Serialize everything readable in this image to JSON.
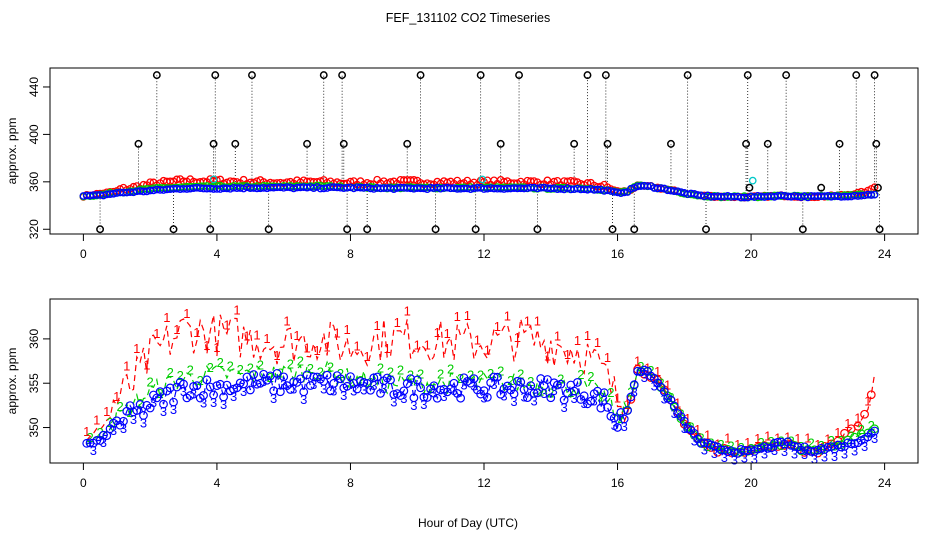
{
  "chart_data": [
    {
      "type": "scatter",
      "title": "FEF_131102  CO2 Timeseries",
      "xlabel": "",
      "ylabel": "approx. ppm",
      "xlim": [
        -1,
        25
      ],
      "ylim": [
        316,
        456
      ],
      "x_ticks": [
        0,
        4,
        8,
        12,
        16,
        20,
        24
      ],
      "y_ticks": [
        320,
        360,
        400,
        440
      ],
      "colors": {
        "raw": "#000000",
        "series1": "#ff0000",
        "series2": "#00cd00",
        "series3": "#0000ff",
        "flag": "#00c8c8"
      },
      "spike_points": [
        [
          0.5,
          320
        ],
        [
          1.65,
          392
        ],
        [
          2.2,
          450
        ],
        [
          2.7,
          320
        ],
        [
          3.8,
          320
        ],
        [
          3.9,
          392
        ],
        [
          3.95,
          450
        ],
        [
          4.55,
          392
        ],
        [
          5.05,
          450
        ],
        [
          5.55,
          320
        ],
        [
          6.7,
          392
        ],
        [
          7.2,
          450
        ],
        [
          7.75,
          450
        ],
        [
          7.8,
          392
        ],
        [
          7.9,
          320
        ],
        [
          8.5,
          320
        ],
        [
          9.7,
          392
        ],
        [
          10.1,
          450
        ],
        [
          10.55,
          320
        ],
        [
          11.75,
          320
        ],
        [
          11.9,
          450
        ],
        [
          12.5,
          392
        ],
        [
          13.05,
          450
        ],
        [
          13.6,
          320
        ],
        [
          14.7,
          392
        ],
        [
          15.1,
          450
        ],
        [
          15.65,
          450
        ],
        [
          15.7,
          392
        ],
        [
          15.85,
          320
        ],
        [
          16.5,
          320
        ],
        [
          17.6,
          392
        ],
        [
          18.1,
          450
        ],
        [
          18.65,
          320
        ],
        [
          19.85,
          392
        ],
        [
          19.9,
          450
        ],
        [
          19.95,
          355
        ],
        [
          20.5,
          392
        ],
        [
          21.05,
          450
        ],
        [
          21.55,
          320
        ],
        [
          22.1,
          355
        ],
        [
          22.65,
          392
        ],
        [
          23.15,
          450
        ],
        [
          23.7,
          450
        ],
        [
          23.75,
          392
        ],
        [
          23.8,
          355
        ],
        [
          23.85,
          320
        ]
      ],
      "cyan_points": [
        [
          3.9,
          362
        ],
        [
          11.95,
          362
        ],
        [
          20.05,
          361
        ]
      ],
      "series_shape": [
        [
          0,
          348,
          348,
          348
        ],
        [
          0.5,
          350,
          349,
          348.5
        ],
        [
          1,
          352,
          351,
          350.5
        ],
        [
          1.5,
          354,
          352.5,
          351.5
        ],
        [
          2,
          357,
          354,
          352.5
        ],
        [
          3,
          360,
          355.5,
          354.5
        ],
        [
          4,
          359.5,
          356,
          354.5
        ],
        [
          5,
          359,
          356,
          355
        ],
        [
          6,
          358.5,
          356,
          355
        ],
        [
          7,
          359,
          356.5,
          355
        ],
        [
          8,
          358,
          355.5,
          355
        ],
        [
          9,
          359,
          355,
          354.5
        ],
        [
          10,
          359,
          355,
          354.5
        ],
        [
          11,
          358.5,
          355,
          354.5
        ],
        [
          12,
          358.5,
          355,
          354.5
        ],
        [
          13,
          359,
          355,
          354.5
        ],
        [
          14,
          358.5,
          354.5,
          354.5
        ],
        [
          15,
          357.5,
          354.5,
          354
        ],
        [
          15.6,
          355,
          353.5,
          353
        ],
        [
          16,
          352,
          351,
          350.5
        ],
        [
          16.3,
          352,
          352,
          352
        ],
        [
          16.6,
          356.5,
          356.5,
          356.5
        ],
        [
          17,
          356,
          356,
          356
        ],
        [
          17.5,
          353.5,
          353.5,
          353.5
        ],
        [
          18,
          350.5,
          350.5,
          350.5
        ],
        [
          18.5,
          348.3,
          348.3,
          348.3
        ],
        [
          19,
          347.6,
          347.6,
          347.6
        ],
        [
          19.9,
          347.2,
          347.2,
          347.2
        ],
        [
          20.5,
          347.8,
          347.8,
          347.8
        ],
        [
          21,
          348.3,
          348.3,
          348.3
        ],
        [
          21.5,
          347.6,
          347.6,
          347.6
        ],
        [
          22,
          347.5,
          347.5,
          347.5
        ],
        [
          22.5,
          348.2,
          348,
          347.8
        ],
        [
          23,
          349.5,
          348.5,
          348.2
        ],
        [
          23.5,
          352,
          349.5,
          349
        ],
        [
          23.7,
          356,
          350,
          349.5
        ]
      ]
    },
    {
      "type": "line",
      "xlabel": "Hour of Day (UTC)",
      "ylabel": "approx. ppm",
      "xlim": [
        -1,
        25
      ],
      "ylim": [
        346,
        364.5
      ],
      "x_ticks": [
        0,
        4,
        8,
        12,
        16,
        20,
        24
      ],
      "y_ticks": [
        350,
        355,
        360
      ],
      "series": [
        {
          "label": "1",
          "color": "#ff0000"
        },
        {
          "label": "2",
          "color": "#00cd00"
        },
        {
          "label": "3",
          "color": "#0000ff"
        }
      ]
    }
  ]
}
